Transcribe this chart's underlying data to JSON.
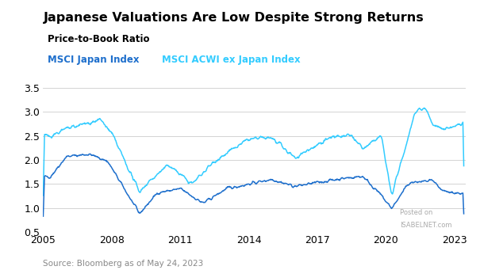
{
  "title": "Japanese Valuations Are Low Despite Strong Returns",
  "subtitle": "Price-to-Book Ratio",
  "legend": [
    "MSCI Japan Index",
    "MSCI ACWI ex Japan Index"
  ],
  "legend_colors": [
    "#1E6FCC",
    "#33CCFF"
  ],
  "source": "Source: Bloomberg as of May 24, 2023",
  "watermark_line1": "Posted on",
  "watermark_line2": "ISABELNET.com",
  "xlim": [
    2005.0,
    2023.5
  ],
  "ylim": [
    0.5,
    3.75
  ],
  "yticks": [
    0.5,
    1.0,
    1.5,
    2.0,
    2.5,
    3.0,
    3.5
  ],
  "xticks": [
    2005,
    2008,
    2011,
    2014,
    2017,
    2020,
    2023
  ],
  "background_color": "#ffffff",
  "grid_color": "#cccccc",
  "japan_color": "#1E6FCC",
  "acwi_color": "#33CCFF"
}
